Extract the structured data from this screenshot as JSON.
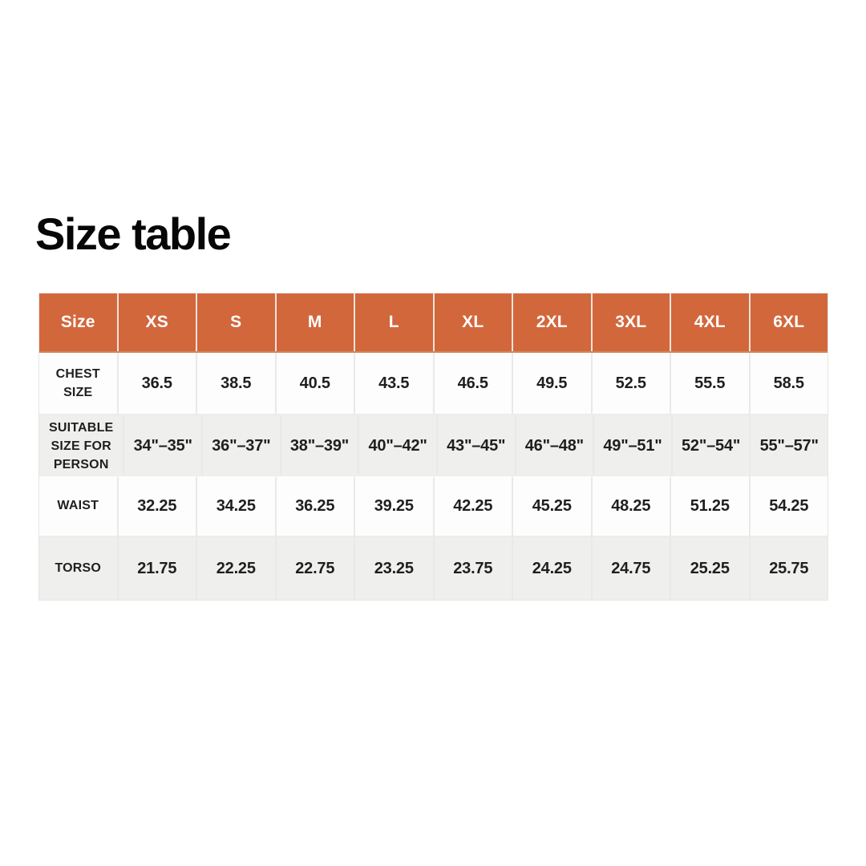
{
  "page": {
    "title": "Size table"
  },
  "colors": {
    "accent_orange": "#d2673c",
    "header_text": "#ffffff",
    "row_alt_bg": "#efefee",
    "row_bg": "#fdfdfd",
    "body_text": "#1f1f1f"
  },
  "table": {
    "columns": [
      "Size",
      "XS",
      "S",
      "M",
      "L",
      "XL",
      "2XL",
      "3XL",
      "4XL",
      "6XL"
    ],
    "rows": [
      {
        "label": "CHEST SIZE",
        "values": [
          "36.5",
          "38.5",
          "40.5",
          "43.5",
          "46.5",
          "49.5",
          "52.5",
          "55.5",
          "58.5"
        ]
      },
      {
        "label": "SUITABLE SIZE FOR PERSON",
        "values": [
          "34\"–35\"",
          "36\"–37\"",
          "38\"–39\"",
          "40\"–42\"",
          "43\"–45\"",
          "46\"–48\"",
          "49\"–51\"",
          "52\"–54\"",
          "55\"–57\""
        ]
      },
      {
        "label": "WAIST",
        "values": [
          "32.25",
          "34.25",
          "36.25",
          "39.25",
          "42.25",
          "45.25",
          "48.25",
          "51.25",
          "54.25"
        ]
      },
      {
        "label": "TORSO",
        "values": [
          "21.75",
          "22.25",
          "22.75",
          "23.25",
          "23.75",
          "24.25",
          "24.75",
          "25.25",
          "25.75"
        ]
      }
    ]
  }
}
